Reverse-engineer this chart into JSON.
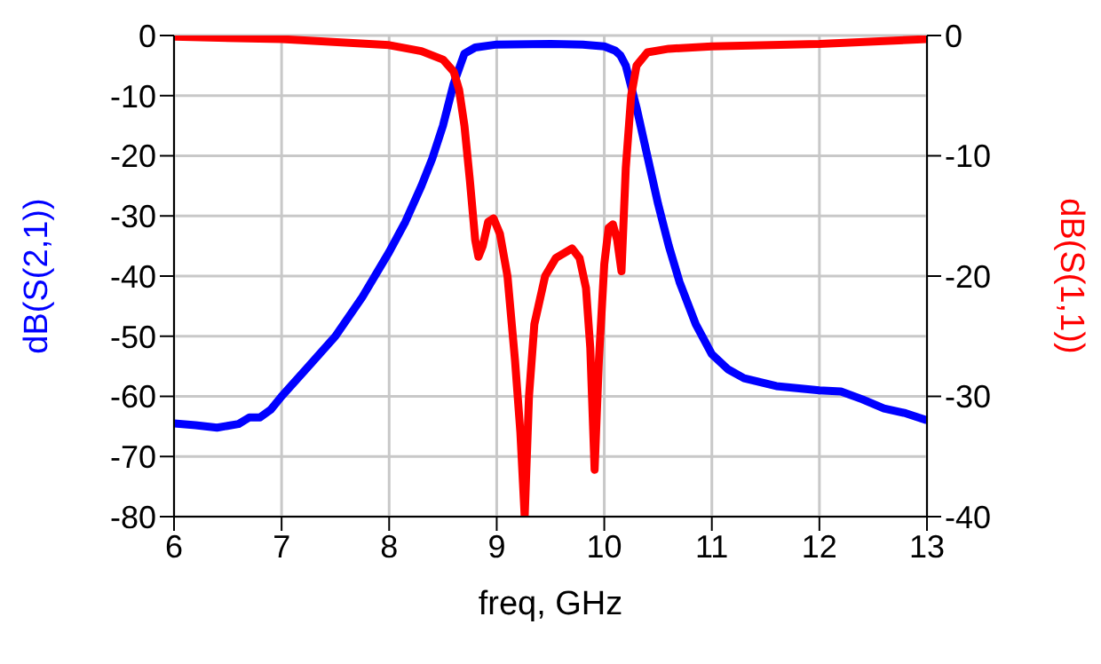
{
  "chart_data": {
    "type": "line",
    "xlabel": "freq, GHz",
    "ylabel": "dB(S(2,1))",
    "y2label": "dB(S(1,1))",
    "xlim": [
      6,
      13
    ],
    "xticks": [
      6,
      7,
      8,
      9,
      10,
      11,
      12,
      13
    ],
    "ylim": [
      -80,
      0
    ],
    "yticks": [
      -80,
      -70,
      -60,
      -50,
      -40,
      -30,
      -20,
      -10,
      0
    ],
    "y2lim": [
      -40,
      0
    ],
    "y2ticks": [
      -40,
      -30,
      -20,
      -10,
      0
    ],
    "grid": true,
    "marker": "none",
    "line_style": "solid",
    "series": [
      {
        "color": "#0000ff",
        "x": [
          6,
          6.2,
          6.4,
          6.6,
          6.7,
          6.8,
          6.9,
          7.0,
          7.25,
          7.5,
          7.75,
          8.0,
          8.15,
          8.3,
          8.4,
          8.5,
          8.6,
          8.7,
          8.8,
          9.0,
          9.5,
          9.8,
          10.0,
          10.1,
          10.15,
          10.2,
          10.3,
          10.4,
          10.5,
          10.6,
          10.7,
          10.85,
          11.0,
          11.15,
          11.3,
          11.6,
          12.0,
          12.2,
          12.4,
          12.6,
          12.8,
          13
        ],
        "values": [
          -64.5,
          -64.8,
          -65.2,
          -64.6,
          -63.5,
          -63.5,
          -62.2,
          -60,
          -55,
          -50,
          -43.5,
          -36,
          -31,
          -25,
          -20.5,
          -15,
          -8,
          -3,
          -2,
          -1.5,
          -1.4,
          -1.5,
          -1.8,
          -2.5,
          -3.3,
          -5,
          -12,
          -20,
          -28,
          -35,
          -41,
          -48,
          -53,
          -55.5,
          -57,
          -58.3,
          -59,
          -59.2,
          -60.5,
          -62,
          -62.8,
          -64
        ]
      },
      {
        "color": "#ff0000",
        "axis": "y2",
        "x": [
          6,
          7,
          8,
          8.3,
          8.5,
          8.6,
          8.65,
          8.7,
          8.75,
          8.8,
          8.83,
          8.87,
          8.92,
          8.97,
          9.03,
          9.1,
          9.17,
          9.22,
          9.26,
          9.3,
          9.35,
          9.45,
          9.55,
          9.7,
          9.77,
          9.83,
          9.87,
          9.91,
          9.95,
          10.0,
          10.04,
          10.08,
          10.12,
          10.16,
          10.2,
          10.25,
          10.3,
          10.4,
          10.6,
          11,
          12,
          13
        ],
        "values": [
          -0.1,
          -0.3,
          -0.8,
          -1.3,
          -2,
          -3,
          -4.5,
          -7.5,
          -12,
          -17,
          -18.4,
          -17.5,
          -15.5,
          -15.2,
          -16.5,
          -20,
          -27,
          -33,
          -40,
          -30,
          -24,
          -20,
          -18.5,
          -17.7,
          -18.5,
          -21,
          -26,
          -36.1,
          -27,
          -19,
          -16,
          -15.7,
          -17,
          -19.6,
          -11,
          -5,
          -2.5,
          -1.4,
          -1.1,
          -0.9,
          -0.7,
          -0.3
        ]
      }
    ]
  }
}
